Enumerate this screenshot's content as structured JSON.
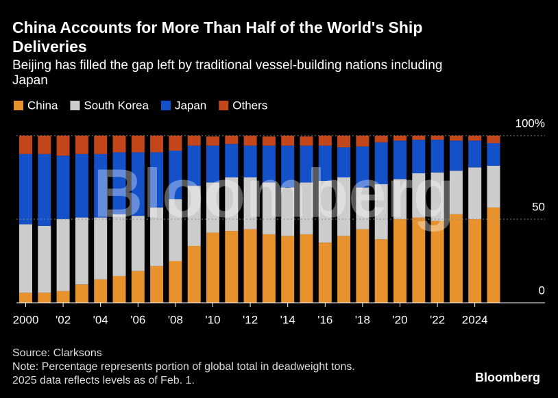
{
  "chart_data": {
    "type": "bar",
    "stacked": true,
    "title": "China Accounts for More Than Half of the World's Ship Deliveries",
    "subtitle": "Beijing has filled the gap left by traditional vessel-building nations including Japan",
    "categories": [
      "2000",
      null,
      "'02",
      null,
      "'04",
      null,
      "'06",
      null,
      "'08",
      null,
      "'10",
      null,
      "'12",
      null,
      "'14",
      null,
      "'16",
      null,
      "'18",
      null,
      "'20",
      null,
      "'22",
      null,
      "2024",
      null
    ],
    "series": [
      {
        "name": "China",
        "color": "#e8922e",
        "values": [
          6,
          6,
          7,
          11,
          14,
          16,
          19,
          22,
          25,
          34,
          42,
          43,
          44,
          41,
          40,
          41,
          36,
          40,
          44,
          38,
          50,
          51,
          49,
          53,
          50,
          57
        ]
      },
      {
        "name": "South Korea",
        "color": "#cccccc",
        "values": [
          41,
          40,
          43,
          40,
          37,
          37,
          33,
          35,
          37,
          36,
          30,
          32,
          31,
          31,
          29,
          31,
          37,
          35,
          25,
          33,
          24,
          26.5,
          29,
          26,
          31,
          25
        ]
      },
      {
        "name": "Japan",
        "color": "#1450c8",
        "values": [
          42,
          43,
          38,
          38,
          38,
          37,
          38,
          33,
          29,
          24,
          22,
          20,
          19,
          22,
          25,
          22,
          21,
          18,
          24.5,
          25,
          23,
          20,
          19.5,
          18,
          16,
          13.5
        ]
      },
      {
        "name": "Others",
        "color": "#c4471c",
        "values": [
          11,
          11,
          12,
          11,
          11,
          10,
          10,
          10,
          9,
          6,
          5.5,
          5,
          6,
          5.5,
          6,
          5.5,
          6,
          7,
          6.5,
          4,
          3,
          2.5,
          2.5,
          3,
          3,
          4.5
        ]
      }
    ],
    "ylim": [
      0,
      100
    ],
    "yticks": [
      0,
      50,
      {
        "value": 100,
        "label": "100%"
      }
    ],
    "grid": true,
    "watermark": "Bloomberg",
    "source": "Source: Clarksons",
    "notes": [
      "Note: Percentage represents portion of global total in deadweight tons.",
      "2025 data reflects levels as of Feb. 1."
    ],
    "logo": "Bloomberg"
  }
}
